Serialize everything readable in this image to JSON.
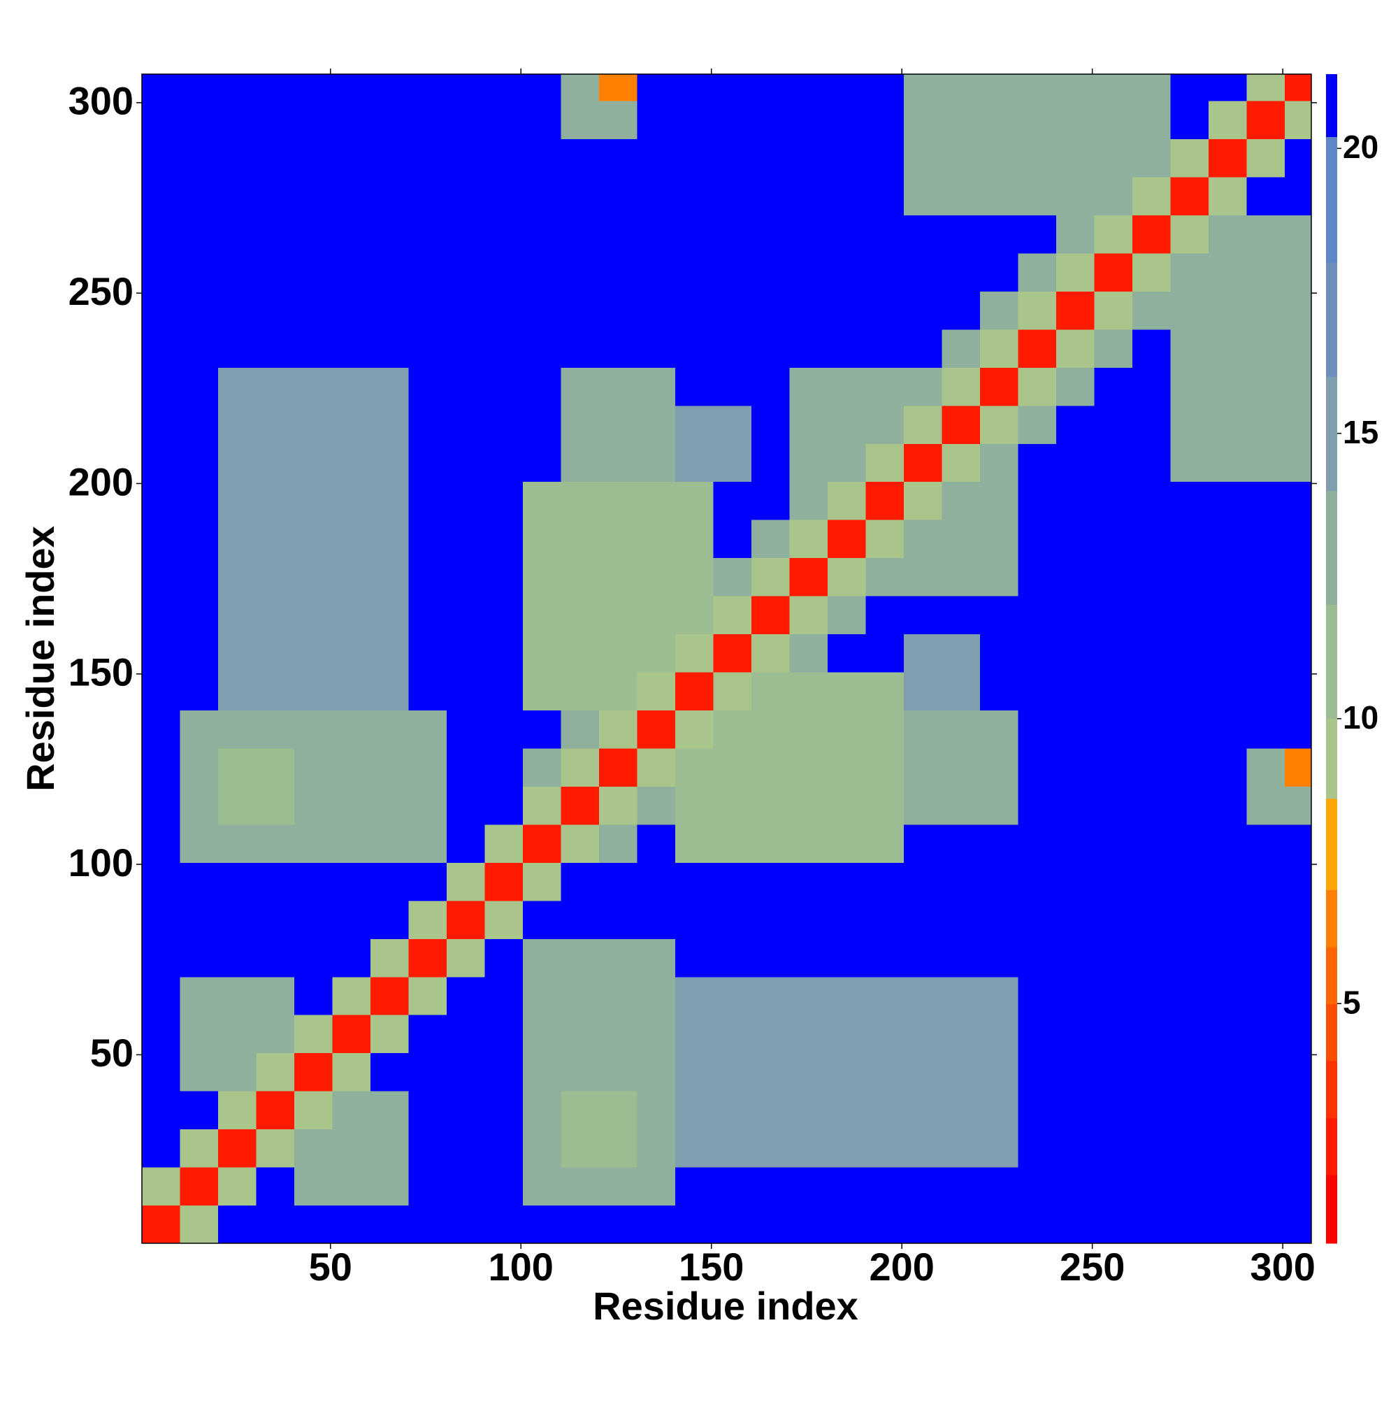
{
  "chart_data": {
    "type": "heatmap",
    "x_label": "Residue index",
    "y_label": "Residue index",
    "xlim": [
      0.5,
      307.5
    ],
    "ylim": [
      0.5,
      307.5
    ],
    "xticks": [
      50,
      100,
      150,
      200,
      250,
      300
    ],
    "yticks": [
      50,
      100,
      150,
      200,
      250,
      300
    ],
    "zlim": [
      0.8,
      21.3
    ],
    "zticks": [
      5,
      10,
      15,
      20
    ],
    "colorscale": [
      {
        "max": 2,
        "color": "#ff0000"
      },
      {
        "max": 3,
        "color": "#ff1a00"
      },
      {
        "max": 4,
        "color": "#ff3300"
      },
      {
        "max": 5,
        "color": "#ff4d00"
      },
      {
        "max": 6,
        "color": "#ff6600"
      },
      {
        "max": 7,
        "color": "#ff8000"
      },
      {
        "max": 8.6,
        "color": "#ffa500"
      },
      {
        "max": 10,
        "color": "#a9c58c"
      },
      {
        "max": 12,
        "color": "#9cbd92"
      },
      {
        "max": 14,
        "color": "#8fb09c"
      },
      {
        "max": 16,
        "color": "#7f9eae"
      },
      {
        "max": 18,
        "color": "#6f8ebb"
      },
      {
        "max": 20.2,
        "color": "#5f86c5"
      },
      {
        "max": 21.3,
        "color": "#0000ff"
      }
    ],
    "x_edges": [
      0.5,
      10.5,
      20.5,
      30.5,
      40.5,
      50.5,
      60.5,
      70.5,
      80.5,
      90.5,
      100.5,
      110.5,
      120.5,
      130.5,
      140.5,
      150.5,
      160.5,
      170.5,
      180.5,
      190.5,
      200.5,
      210.5,
      220.5,
      230.5,
      240.5,
      250.5,
      260.5,
      270.5,
      280.5,
      290.5,
      300.5,
      307.5
    ],
    "y_edges": [
      0.5,
      10.5,
      20.5,
      30.5,
      40.5,
      50.5,
      60.5,
      70.5,
      80.5,
      90.5,
      100.5,
      110.5,
      120.5,
      130.5,
      140.5,
      150.5,
      160.5,
      170.5,
      180.5,
      190.5,
      200.5,
      210.5,
      220.5,
      230.5,
      240.5,
      250.5,
      260.5,
      270.5,
      280.5,
      290.5,
      300.5,
      307.5
    ],
    "z": [
      [
        3,
        10,
        21,
        21,
        21,
        21,
        21,
        21,
        21,
        21,
        21,
        21,
        21,
        21,
        21,
        21,
        21,
        21,
        21,
        21,
        21,
        21,
        21,
        21,
        21,
        21,
        21,
        21,
        21,
        21,
        21
      ],
      [
        10,
        3,
        10,
        21,
        13,
        13,
        13,
        21,
        21,
        21,
        14,
        14,
        14,
        14,
        21,
        21,
        21,
        21,
        21,
        21,
        21,
        21,
        21,
        21,
        21,
        21,
        21,
        21,
        21,
        21,
        21
      ],
      [
        21,
        10,
        3,
        10,
        13,
        13,
        13,
        21,
        21,
        21,
        14,
        11,
        11,
        14,
        15,
        15,
        15,
        15,
        15,
        15,
        15,
        15,
        15,
        21,
        21,
        21,
        21,
        21,
        21,
        21,
        21
      ],
      [
        21,
        21,
        10,
        3,
        10,
        13,
        13,
        21,
        21,
        21,
        14,
        11,
        11,
        14,
        15,
        15,
        15,
        15,
        15,
        15,
        15,
        15,
        15,
        21,
        21,
        21,
        21,
        21,
        21,
        21,
        21
      ],
      [
        21,
        13,
        13,
        10,
        3,
        10,
        21,
        21,
        21,
        21,
        14,
        14,
        14,
        14,
        15,
        15,
        15,
        15,
        15,
        15,
        15,
        15,
        15,
        21,
        21,
        21,
        21,
        21,
        21,
        21,
        21
      ],
      [
        21,
        13,
        13,
        13,
        10,
        3,
        10,
        21,
        21,
        21,
        14,
        14,
        14,
        14,
        15,
        15,
        15,
        15,
        15,
        15,
        15,
        15,
        15,
        21,
        21,
        21,
        21,
        21,
        21,
        21,
        21
      ],
      [
        21,
        13,
        13,
        13,
        21,
        10,
        3,
        10,
        21,
        21,
        14,
        14,
        14,
        14,
        15,
        15,
        15,
        15,
        15,
        15,
        15,
        15,
        15,
        21,
        21,
        21,
        21,
        21,
        21,
        21,
        21
      ],
      [
        21,
        21,
        21,
        21,
        21,
        21,
        10,
        3,
        10,
        21,
        14,
        14,
        14,
        14,
        21,
        21,
        21,
        21,
        21,
        21,
        21,
        21,
        21,
        21,
        21,
        21,
        21,
        21,
        21,
        21,
        21
      ],
      [
        21,
        21,
        21,
        21,
        21,
        21,
        21,
        10,
        3,
        10,
        21,
        21,
        21,
        21,
        21,
        21,
        21,
        21,
        21,
        21,
        21,
        21,
        21,
        21,
        21,
        21,
        21,
        21,
        21,
        21,
        21
      ],
      [
        21,
        21,
        21,
        21,
        21,
        21,
        21,
        21,
        10,
        3,
        10,
        21,
        21,
        21,
        21,
        21,
        21,
        21,
        21,
        21,
        21,
        21,
        21,
        21,
        21,
        21,
        21,
        21,
        21,
        21,
        21
      ],
      [
        21,
        14,
        14,
        14,
        14,
        14,
        14,
        14,
        21,
        10,
        3,
        10,
        14,
        21,
        12,
        12,
        12,
        12,
        12,
        12,
        21,
        21,
        21,
        21,
        21,
        21,
        21,
        21,
        21,
        21,
        21
      ],
      [
        21,
        14,
        11,
        11,
        14,
        14,
        14,
        14,
        21,
        21,
        10,
        3,
        10,
        14,
        12,
        12,
        12,
        12,
        12,
        12,
        13,
        13,
        13,
        21,
        21,
        21,
        21,
        21,
        21,
        13,
        13
      ],
      [
        21,
        14,
        11,
        11,
        14,
        14,
        14,
        14,
        21,
        21,
        14,
        10,
        3,
        10,
        12,
        12,
        12,
        12,
        12,
        12,
        13,
        13,
        13,
        21,
        21,
        21,
        21,
        21,
        21,
        13,
        7
      ],
      [
        21,
        14,
        14,
        14,
        14,
        14,
        14,
        14,
        21,
        21,
        21,
        14,
        10,
        3,
        10,
        12,
        12,
        12,
        12,
        12,
        13,
        13,
        13,
        21,
        21,
        21,
        21,
        21,
        21,
        21,
        21
      ],
      [
        21,
        21,
        15,
        15,
        15,
        15,
        15,
        21,
        21,
        21,
        12,
        12,
        12,
        10,
        3,
        10,
        12,
        12,
        12,
        12,
        15,
        15,
        21,
        21,
        21,
        21,
        21,
        21,
        21,
        21,
        21
      ],
      [
        21,
        21,
        15,
        15,
        15,
        15,
        15,
        21,
        21,
        21,
        12,
        12,
        12,
        12,
        10,
        3,
        10,
        14,
        21,
        21,
        15,
        15,
        21,
        21,
        21,
        21,
        21,
        21,
        21,
        21,
        21
      ],
      [
        21,
        21,
        15,
        15,
        15,
        15,
        15,
        21,
        21,
        21,
        12,
        12,
        12,
        12,
        12,
        10,
        3,
        10,
        14,
        21,
        21,
        21,
        21,
        21,
        21,
        21,
        21,
        21,
        21,
        21,
        21
      ],
      [
        21,
        21,
        15,
        15,
        15,
        15,
        15,
        21,
        21,
        21,
        12,
        12,
        12,
        12,
        12,
        14,
        10,
        3,
        10,
        13,
        13,
        13,
        13,
        21,
        21,
        21,
        21,
        21,
        21,
        21,
        21
      ],
      [
        21,
        21,
        15,
        15,
        15,
        15,
        15,
        21,
        21,
        21,
        12,
        12,
        12,
        12,
        12,
        21,
        14,
        10,
        3,
        10,
        13,
        13,
        13,
        21,
        21,
        21,
        21,
        21,
        21,
        21,
        21
      ],
      [
        21,
        21,
        15,
        15,
        15,
        15,
        15,
        21,
        21,
        21,
        12,
        12,
        12,
        12,
        12,
        21,
        21,
        13,
        10,
        3,
        10,
        13,
        13,
        21,
        21,
        21,
        21,
        21,
        21,
        21,
        21
      ],
      [
        21,
        21,
        15,
        15,
        15,
        15,
        15,
        21,
        21,
        21,
        21,
        13,
        13,
        13,
        15,
        15,
        21,
        13,
        13,
        10,
        3,
        10,
        13,
        21,
        21,
        21,
        21,
        14,
        14,
        14,
        14
      ],
      [
        21,
        21,
        15,
        15,
        15,
        15,
        15,
        21,
        21,
        21,
        21,
        13,
        13,
        13,
        15,
        15,
        21,
        13,
        13,
        13,
        10,
        3,
        10,
        14,
        21,
        21,
        21,
        14,
        14,
        14,
        14
      ],
      [
        21,
        21,
        15,
        15,
        15,
        15,
        15,
        21,
        21,
        21,
        21,
        13,
        13,
        13,
        21,
        21,
        21,
        13,
        13,
        13,
        13,
        10,
        3,
        10,
        14,
        21,
        21,
        14,
        14,
        14,
        14
      ],
      [
        21,
        21,
        21,
        21,
        21,
        21,
        21,
        21,
        21,
        21,
        21,
        21,
        21,
        21,
        21,
        21,
        21,
        21,
        21,
        21,
        21,
        14,
        10,
        3,
        10,
        14,
        21,
        14,
        14,
        14,
        14
      ],
      [
        21,
        21,
        21,
        21,
        21,
        21,
        21,
        21,
        21,
        21,
        21,
        21,
        21,
        21,
        21,
        21,
        21,
        21,
        21,
        21,
        21,
        21,
        14,
        10,
        3,
        10,
        14,
        14,
        14,
        14,
        14
      ],
      [
        21,
        21,
        21,
        21,
        21,
        21,
        21,
        21,
        21,
        21,
        21,
        21,
        21,
        21,
        21,
        21,
        21,
        21,
        21,
        21,
        21,
        21,
        21,
        14,
        10,
        3,
        10,
        14,
        14,
        14,
        14
      ],
      [
        21,
        21,
        21,
        21,
        21,
        21,
        21,
        21,
        21,
        21,
        21,
        21,
        21,
        21,
        21,
        21,
        21,
        21,
        21,
        21,
        21,
        21,
        21,
        21,
        14,
        10,
        3,
        10,
        14,
        14,
        14
      ],
      [
        21,
        21,
        21,
        21,
        21,
        21,
        21,
        21,
        21,
        21,
        21,
        21,
        21,
        21,
        21,
        21,
        21,
        21,
        21,
        21,
        14,
        14,
        14,
        14,
        14,
        14,
        10,
        3,
        10,
        21,
        21
      ],
      [
        21,
        21,
        21,
        21,
        21,
        21,
        21,
        21,
        21,
        21,
        21,
        21,
        21,
        21,
        21,
        21,
        21,
        21,
        21,
        21,
        14,
        14,
        14,
        14,
        14,
        14,
        14,
        10,
        3,
        10,
        21
      ],
      [
        21,
        21,
        21,
        21,
        21,
        21,
        21,
        21,
        21,
        21,
        21,
        13,
        13,
        21,
        21,
        21,
        21,
        21,
        21,
        21,
        14,
        14,
        14,
        14,
        14,
        14,
        14,
        21,
        10,
        3,
        10
      ],
      [
        21,
        21,
        21,
        21,
        21,
        21,
        21,
        21,
        21,
        21,
        21,
        13,
        7,
        21,
        21,
        21,
        21,
        21,
        21,
        21,
        14,
        14,
        14,
        14,
        14,
        14,
        14,
        21,
        21,
        10,
        3
      ]
    ]
  }
}
